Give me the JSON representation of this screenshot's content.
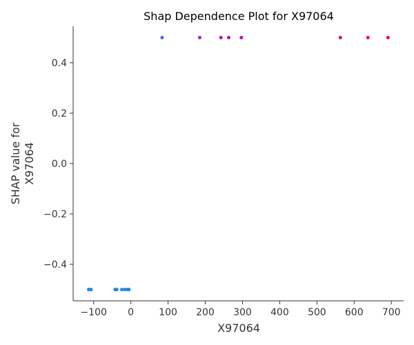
{
  "chart_data": {
    "type": "scatter",
    "title": "Shap Dependence Plot for X97064",
    "xlabel": "X97064",
    "ylabel_lines": [
      "SHAP value for",
      "X97064"
    ],
    "xlim": [
      -155,
      733
    ],
    "ylim": [
      -0.545,
      0.545
    ],
    "xticks": [
      -100,
      0,
      100,
      200,
      300,
      400,
      500,
      600,
      700
    ],
    "xtick_labels": [
      "−100",
      "0",
      "100",
      "200",
      "300",
      "400",
      "500",
      "600",
      "700"
    ],
    "yticks": [
      -0.4,
      -0.2,
      0.0,
      0.2,
      0.4
    ],
    "ytick_labels": [
      "−0.4",
      "−0.2",
      "0.0",
      "0.2",
      "0.4"
    ],
    "grid": false,
    "legend": "none",
    "points": [
      {
        "x": -113,
        "y": -0.5,
        "color": "#1E88E5"
      },
      {
        "x": -107,
        "y": -0.5,
        "color": "#1E88E5"
      },
      {
        "x": -42,
        "y": -0.5,
        "color": "#1E88E5"
      },
      {
        "x": -38,
        "y": -0.5,
        "color": "#1E88E5"
      },
      {
        "x": -24,
        "y": -0.5,
        "color": "#1E88E5"
      },
      {
        "x": -16,
        "y": -0.5,
        "color": "#1E88E5"
      },
      {
        "x": -9,
        "y": -0.5,
        "color": "#1E88E5"
      },
      {
        "x": -5,
        "y": -0.5,
        "color": "#1E88E5"
      },
      {
        "x": 84,
        "y": 0.5,
        "color": "#4D6CF0"
      },
      {
        "x": 185,
        "y": 0.5,
        "color": "#9A30C8"
      },
      {
        "x": 242,
        "y": 0.5,
        "color": "#A81FB4"
      },
      {
        "x": 263,
        "y": 0.5,
        "color": "#AC1DB0"
      },
      {
        "x": 297,
        "y": 0.5,
        "color": "#B21BA8"
      },
      {
        "x": 563,
        "y": 0.5,
        "color": "#E2106E"
      },
      {
        "x": 637,
        "y": 0.5,
        "color": "#EC0D64"
      },
      {
        "x": 691,
        "y": 0.5,
        "color": "#F20B58"
      }
    ]
  }
}
